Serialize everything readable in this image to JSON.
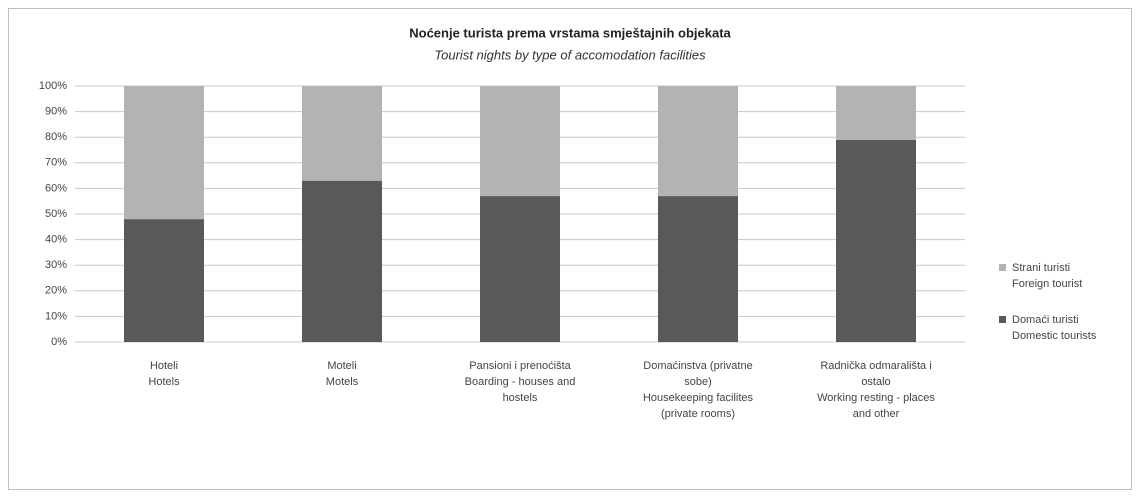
{
  "chart_data": {
    "type": "stacked_bar",
    "title": "Noćenje turista prema vrstama smještajnih objekata",
    "subtitle": "Tourist nights by type of accomodation facilities",
    "categories": [
      [
        "Hoteli",
        "Hotels"
      ],
      [
        "Moteli",
        "Motels"
      ],
      [
        "Pansioni  i  prenoćišta",
        "Boarding - houses and",
        "hostels"
      ],
      [
        "Domaćinstva (privatne",
        "sobe)",
        "Housekeeping facilites",
        "(private rooms)"
      ],
      [
        "Radnička odmarališta i",
        "ostalo",
        "Working resting - places",
        "and other"
      ]
    ],
    "series": [
      {
        "name": [
          "Domaći turisti",
          "Domestic tourists"
        ],
        "color": "#595959",
        "values": [
          48,
          63,
          57,
          57,
          79
        ]
      },
      {
        "name": [
          "Strani turisti",
          "Foreign tourist"
        ],
        "color": "#b3b3b3",
        "values": [
          52,
          37,
          43,
          43,
          21
        ]
      }
    ],
    "ylim": [
      0,
      100
    ],
    "yticks": [
      {
        "value": 0,
        "label": "0%"
      },
      {
        "value": 10,
        "label": "10%"
      },
      {
        "value": 20,
        "label": "20%"
      },
      {
        "value": 30,
        "label": "30%"
      },
      {
        "value": 40,
        "label": "40%"
      },
      {
        "value": 50,
        "label": "50%"
      },
      {
        "value": 60,
        "label": "60%"
      },
      {
        "value": 70,
        "label": "70%"
      },
      {
        "value": 80,
        "label": "80%"
      },
      {
        "value": 90,
        "label": "90%"
      },
      {
        "value": 100,
        "label": "100%"
      }
    ],
    "grid": true,
    "legend": "right"
  }
}
